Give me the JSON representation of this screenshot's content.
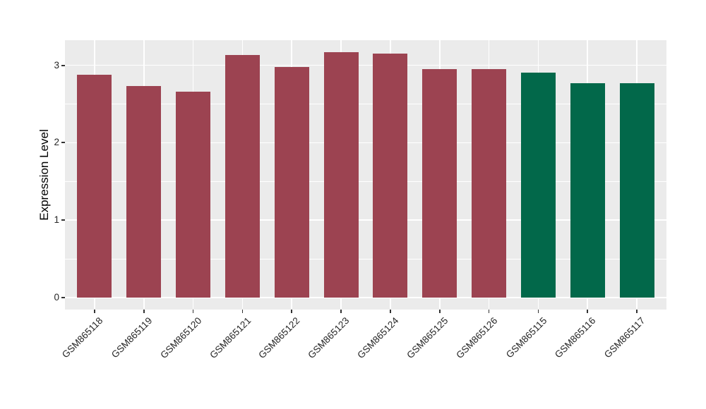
{
  "chart_data": {
    "type": "bar",
    "title": "",
    "xlabel": "",
    "ylabel": "Expression Level",
    "categories": [
      "GSM865118",
      "GSM865119",
      "GSM865120",
      "GSM865121",
      "GSM865122",
      "GSM865123",
      "GSM865124",
      "GSM865125",
      "GSM865126",
      "GSM865115",
      "GSM865116",
      "GSM865117"
    ],
    "values": [
      2.88,
      2.73,
      2.66,
      3.13,
      2.98,
      3.17,
      3.15,
      2.95,
      2.95,
      2.91,
      2.77,
      2.77
    ],
    "bar_colors": [
      "#9c4351",
      "#9c4351",
      "#9c4351",
      "#9c4351",
      "#9c4351",
      "#9c4351",
      "#9c4351",
      "#9c4351",
      "#9c4351",
      "#02684a",
      "#02684a",
      "#02684a"
    ],
    "groups": [
      {
        "name": "group-red",
        "color": "#9c4351",
        "members": [
          "GSM865118",
          "GSM865119",
          "GSM865120",
          "GSM865121",
          "GSM865122",
          "GSM865123",
          "GSM865124",
          "GSM865125",
          "GSM865126"
        ]
      },
      {
        "name": "group-green",
        "color": "#02684a",
        "members": [
          "GSM865115",
          "GSM865116",
          "GSM865117"
        ]
      }
    ],
    "yticks": [
      "0",
      "1",
      "2",
      "3"
    ],
    "ytick_values": [
      0,
      1,
      2,
      3
    ],
    "minor_gridline_values": [
      0.5,
      1.5,
      2.5
    ],
    "ylim": [
      -0.16,
      3.33
    ],
    "grid": "major and minor white gridlines on gray panel",
    "legend": null,
    "colors": {
      "figure_bg": "#ffffff",
      "panel_bg": "#ebebeb",
      "grid": "#ffffff",
      "tick_mark": "#333333",
      "axis_text": "#262626",
      "axis_title": "#000000"
    }
  }
}
